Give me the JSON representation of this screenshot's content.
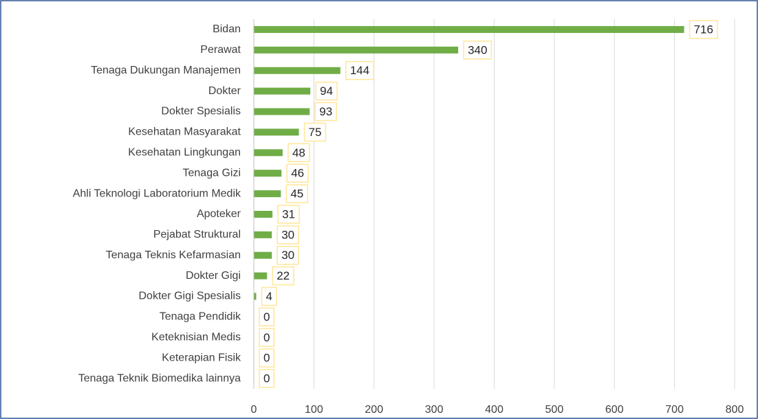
{
  "chart_data": {
    "type": "bar",
    "orientation": "horizontal",
    "categories": [
      "Bidan",
      "Perawat",
      "Tenaga Dukungan Manajemen",
      "Dokter",
      "Dokter Spesialis",
      "Kesehatan Masyarakat",
      "Kesehatan Lingkungan",
      "Tenaga Gizi",
      "Ahli Teknologi Laboratorium Medik",
      "Apoteker",
      "Pejabat Struktural",
      "Tenaga Teknis Kefarmasian",
      "Dokter Gigi",
      "Dokter Gigi Spesialis",
      "Tenaga Pendidik",
      "Keteknisian Medis",
      "Keterapian Fisik",
      "Tenaga Teknik Biomedika lainnya"
    ],
    "values": [
      716,
      340,
      144,
      94,
      93,
      75,
      48,
      46,
      45,
      31,
      30,
      30,
      22,
      4,
      0,
      0,
      0,
      0
    ],
    "color": "#70ad47",
    "xlim": [
      0,
      800
    ],
    "xticks": [
      0,
      100,
      200,
      300,
      400,
      500,
      600,
      700,
      800
    ],
    "grid": true
  }
}
